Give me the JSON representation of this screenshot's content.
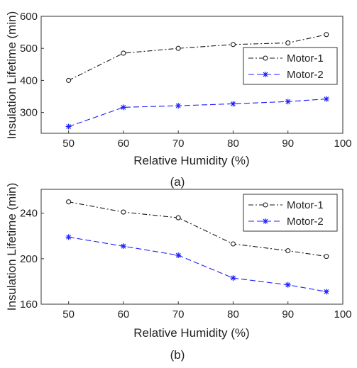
{
  "chart_data": [
    {
      "type": "line",
      "caption": "(a)",
      "xlabel": "Relative Humidity (%)",
      "ylabel": "Insulation Lifetime (min)",
      "xlim": [
        45,
        100
      ],
      "ylim": [
        235,
        600
      ],
      "xticks": [
        50,
        60,
        70,
        80,
        90,
        100
      ],
      "yticks": [
        300,
        400,
        500,
        600
      ],
      "legend_position": "right",
      "x": [
        50,
        60,
        70,
        80,
        90,
        97
      ],
      "series": [
        {
          "name": "Motor-1",
          "values": [
            400,
            485,
            500,
            512,
            517,
            543
          ],
          "color": "#1a1a1a",
          "style": "dash-dot",
          "marker": "circle"
        },
        {
          "name": "Motor-2",
          "values": [
            256,
            316,
            321,
            327,
            334,
            342
          ],
          "color": "#1f1fff",
          "style": "dashed",
          "marker": "asterisk"
        }
      ]
    },
    {
      "type": "line",
      "caption": "(b)",
      "xlabel": "Relative Humidity (%)",
      "ylabel": "Insulation Lifetime (min)",
      "xlim": [
        45,
        100
      ],
      "ylim": [
        160,
        261
      ],
      "xticks": [
        50,
        60,
        70,
        80,
        90,
        100
      ],
      "yticks": [
        160,
        200,
        240
      ],
      "legend_position": "top-right",
      "x": [
        50,
        60,
        70,
        80,
        90,
        97
      ],
      "series": [
        {
          "name": "Motor-1",
          "values": [
            250,
            241,
            236,
            213,
            207,
            202
          ],
          "color": "#1a1a1a",
          "style": "dash-dot",
          "marker": "circle"
        },
        {
          "name": "Motor-2",
          "values": [
            219,
            211,
            203,
            183,
            177,
            171
          ],
          "color": "#1f1fff",
          "style": "dashed",
          "marker": "asterisk"
        }
      ]
    }
  ]
}
